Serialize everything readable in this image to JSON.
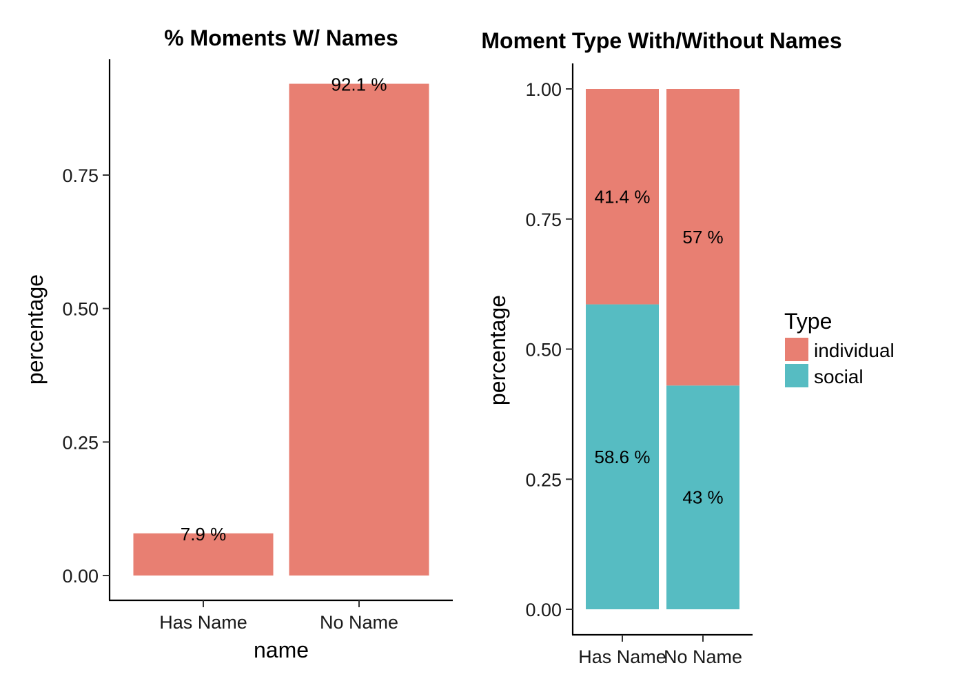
{
  "chart_data": [
    {
      "type": "bar",
      "title": "% Moments W/ Names",
      "xlabel": "name",
      "ylabel": "percentage",
      "categories": [
        "Has Name",
        "No Name"
      ],
      "values": [
        0.079,
        0.921
      ],
      "data_labels": [
        "7.9 %",
        "92.1 %"
      ],
      "ylim": [
        0,
        0.95
      ],
      "yticks": [
        0,
        0.25,
        0.5,
        0.75
      ],
      "ytick_labels": [
        "0.00",
        "0.25",
        "0.50",
        "0.75"
      ],
      "bar_color": "#E87F72",
      "grid": false
    },
    {
      "type": "bar",
      "stacked": true,
      "title": "Moment Type With/Without Names",
      "xlabel": "",
      "ylabel": "percentage",
      "categories": [
        "Has Name",
        "No Name"
      ],
      "ylim": [
        0,
        1.0
      ],
      "yticks": [
        0,
        0.25,
        0.5,
        0.75,
        1.0
      ],
      "ytick_labels": [
        "0.00",
        "0.25",
        "0.50",
        "0.75",
        "1.00"
      ],
      "legend": {
        "title": "Type",
        "placement": "right",
        "entries": [
          {
            "label": "individual",
            "color": "#E87F72"
          },
          {
            "label": "social",
            "color": "#56BCC2"
          }
        ]
      },
      "series": [
        {
          "name": "social",
          "color": "#56BCC2",
          "values": [
            0.586,
            0.43
          ],
          "data_labels": [
            "58.6 %",
            "43 %"
          ]
        },
        {
          "name": "individual",
          "color": "#E87F72",
          "values": [
            0.414,
            0.57
          ],
          "data_labels": [
            "41.4 %",
            "57 %"
          ]
        }
      ],
      "grid": false
    }
  ]
}
